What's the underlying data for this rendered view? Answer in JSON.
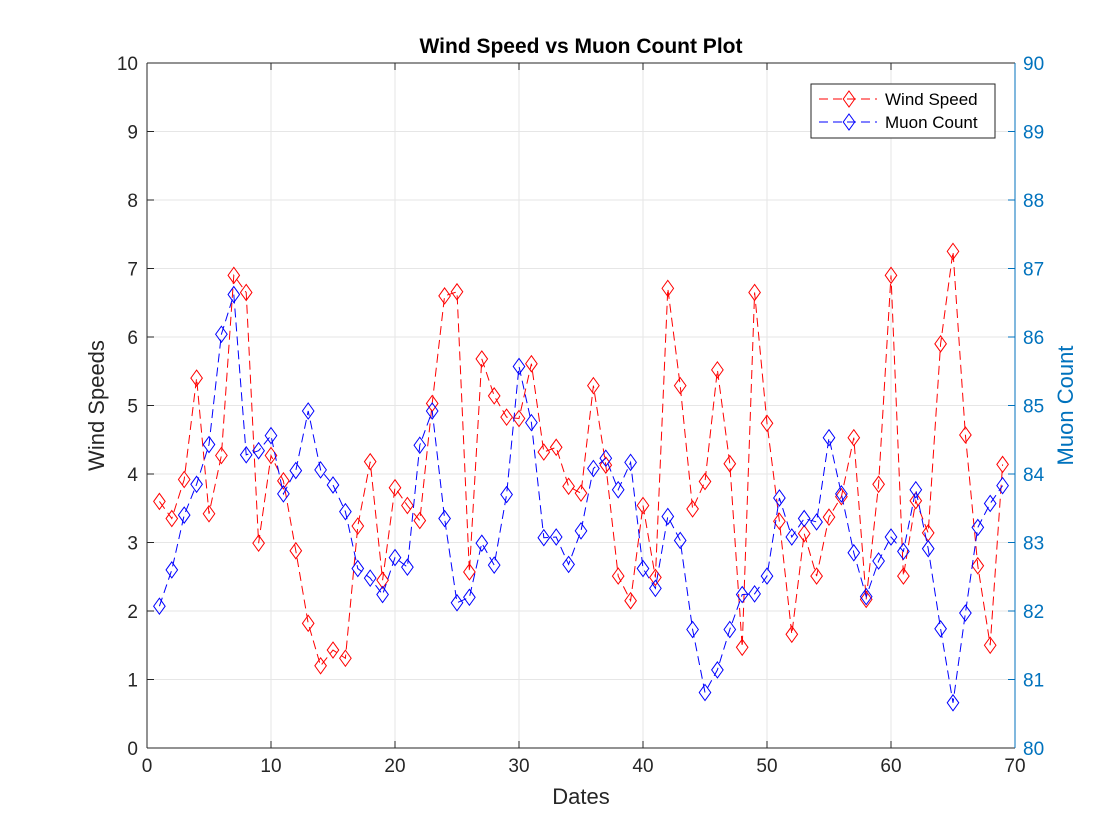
{
  "chart_data": {
    "type": "line",
    "title": "Wind Speed vs Muon Count Plot",
    "xlabel": "Dates",
    "ylabel": "Wind Speeds",
    "y2label": "Muon Count",
    "xlim": [
      0,
      70
    ],
    "ylim": [
      0,
      10
    ],
    "y2lim": [
      80,
      90
    ],
    "xticks": [
      "0",
      "10",
      "20",
      "30",
      "40",
      "50",
      "60",
      "70"
    ],
    "yticks": [
      "0",
      "1",
      "2",
      "3",
      "4",
      "5",
      "6",
      "7",
      "8",
      "9",
      "10"
    ],
    "y2ticks": [
      "80",
      "81",
      "82",
      "83",
      "84",
      "85",
      "86",
      "87",
      "88",
      "89",
      "90"
    ],
    "grid": true,
    "legend_position": "top-right",
    "x": [
      1,
      2,
      3,
      4,
      5,
      6,
      7,
      8,
      9,
      10,
      11,
      12,
      13,
      14,
      15,
      16,
      17,
      18,
      19,
      20,
      21,
      22,
      23,
      24,
      25,
      26,
      27,
      28,
      29,
      30,
      31,
      32,
      33,
      34,
      35,
      36,
      37,
      38,
      39,
      40,
      41,
      42,
      43,
      44,
      45,
      46,
      47,
      48,
      49,
      50,
      51,
      52,
      53,
      54,
      55,
      56,
      57,
      58,
      59,
      60,
      61,
      62,
      63,
      64,
      65,
      66,
      67,
      68,
      69
    ],
    "series": [
      {
        "name": "Wind Speed",
        "axis": "left",
        "color": "#FF0000",
        "line_style": "dashed",
        "marker": "diamond",
        "values": [
          3.6,
          3.35,
          3.92,
          5.4,
          3.42,
          4.27,
          6.9,
          6.65,
          2.99,
          4.27,
          3.9,
          2.88,
          1.82,
          1.2,
          1.43,
          1.31,
          3.24,
          4.18,
          2.45,
          3.8,
          3.54,
          3.32,
          5.03,
          6.6,
          6.66,
          2.57,
          5.68,
          5.14,
          4.83,
          4.81,
          5.61,
          4.32,
          4.39,
          3.82,
          3.72,
          5.29,
          4.13,
          2.51,
          2.15,
          3.54,
          2.49,
          6.71,
          5.29,
          3.49,
          3.89,
          5.52,
          4.15,
          1.47,
          6.65,
          4.74,
          3.31,
          1.66,
          3.13,
          2.51,
          3.37,
          3.67,
          4.53,
          2.17,
          3.85,
          6.9,
          2.51,
          3.61,
          3.14,
          5.9,
          7.25,
          4.57,
          2.66,
          1.5,
          4.14
        ]
      },
      {
        "name": "Muon Count",
        "axis": "right",
        "color": "#0000FF",
        "line_style": "dashed",
        "marker": "diamond",
        "values": [
          82.07,
          82.6,
          83.4,
          83.85,
          84.43,
          86.04,
          86.62,
          84.28,
          84.34,
          84.56,
          83.71,
          84.05,
          84.92,
          84.06,
          83.84,
          83.45,
          82.62,
          82.48,
          82.24,
          82.78,
          82.64,
          84.42,
          84.92,
          83.35,
          82.12,
          82.2,
          82.99,
          82.67,
          83.7,
          85.57,
          84.75,
          83.07,
          83.08,
          82.68,
          83.17,
          84.08,
          84.23,
          83.77,
          84.17,
          82.62,
          82.33,
          83.38,
          83.03,
          81.73,
          80.81,
          81.14,
          81.73,
          82.24,
          82.25,
          82.51,
          83.65,
          83.08,
          83.35,
          83.3,
          84.53,
          83.71,
          82.85,
          82.21,
          82.73,
          83.08,
          82.87,
          83.77,
          82.91,
          81.74,
          80.66,
          81.97,
          83.22,
          83.57,
          83.83
        ]
      }
    ]
  }
}
